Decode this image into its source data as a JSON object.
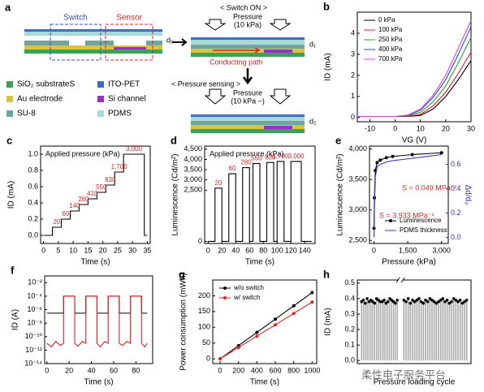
{
  "diagram": {
    "label": "a",
    "switch": "Switch",
    "sensor": "Sensor",
    "d0": "d₀",
    "switch_on": "< Switch ON >",
    "pressure_on_1": "Pressure",
    "pressure_on_2": "(10 kPa)",
    "d1": "d₁",
    "conducting": "Conducting path",
    "sensing": "< Pressure sensing >",
    "pressure_s_1": "Pressure",
    "pressure_s_2": "(10 kPa ~)",
    "d2": "d₂",
    "legend": [
      {
        "name": "SiO₂ substrateS",
        "color": "#3aa35a"
      },
      {
        "name": "ITO-PET",
        "color": "#3a6fc4"
      },
      {
        "name": "Au electrode",
        "color": "#d9c43c"
      },
      {
        "name": "Si channel",
        "color": "#9b30c8"
      },
      {
        "name": "SU-8",
        "color": "#6fa6a0"
      },
      {
        "name": "PDMS",
        "color": "#a8d8d8"
      }
    ]
  },
  "watermark": "柔性电子服务平台",
  "chart_data": [
    {
      "label": "b",
      "type": "line",
      "x_label": "VG (V)",
      "y_label": "ID (mA)",
      "x": [
        -15,
        -10,
        -5,
        0,
        5,
        10,
        15,
        20,
        25,
        30
      ],
      "xlim": [
        -15,
        30
      ],
      "xticks": [
        -10,
        0,
        10,
        20,
        30
      ],
      "ylim": [
        -0.2,
        5
      ],
      "yticks": [
        0,
        1,
        2,
        3,
        4
      ],
      "legend": "upper left",
      "series": [
        {
          "name": "0 kPa",
          "color": "#000000",
          "values": [
            0.05,
            0.05,
            0.05,
            0.05,
            0.05,
            0.1,
            0.4,
            1.0,
            1.8,
            2.7
          ]
        },
        {
          "name": "100 kPa",
          "color": "#e02020",
          "values": [
            0.05,
            0.05,
            0.05,
            0.05,
            0.06,
            0.15,
            0.55,
            1.2,
            2.1,
            3.1
          ]
        },
        {
          "name": "250 kPa",
          "color": "#2ca02c",
          "values": [
            0.05,
            0.05,
            0.05,
            0.05,
            0.08,
            0.25,
            0.75,
            1.5,
            2.6,
            3.8
          ]
        },
        {
          "name": "400 kPa",
          "color": "#1f4fd0",
          "values": [
            0.05,
            0.05,
            0.05,
            0.05,
            0.1,
            0.35,
            0.95,
            1.8,
            3.0,
            4.3
          ]
        },
        {
          "name": "700 kPa",
          "color": "#e040e0",
          "values": [
            0.05,
            0.05,
            0.05,
            0.05,
            0.12,
            0.4,
            1.05,
            2.0,
            3.3,
            4.6
          ]
        }
      ]
    },
    {
      "label": "c",
      "type": "line",
      "x_label": "Time (s)",
      "y_label": "ID (mA)",
      "annotation": "Applied pressure (kPa)",
      "xlim": [
        -1,
        36
      ],
      "xticks": [
        0,
        5,
        10,
        15,
        20,
        25,
        30,
        35
      ],
      "ylim": [
        -0.1,
        1.1
      ],
      "yticks": [
        {
          "value": 0,
          "label": "0.0"
        },
        0.2,
        0.4,
        0.6,
        0.8,
        {
          "value": 1,
          "label": "1.0"
        }
      ],
      "x": [
        0,
        3,
        3,
        6,
        6,
        9,
        9,
        12,
        12,
        15,
        15,
        18,
        18,
        21,
        21,
        24,
        24,
        27,
        27,
        34,
        34,
        35
      ],
      "values": [
        0,
        0,
        0.1,
        0.1,
        0.2,
        0.2,
        0.3,
        0.3,
        0.38,
        0.38,
        0.45,
        0.45,
        0.53,
        0.53,
        0.62,
        0.62,
        0.78,
        0.78,
        1.0,
        1.0,
        0,
        0
      ],
      "color": "#000000",
      "step_labels": [
        "20",
        "60",
        "140",
        "280",
        "410",
        "550",
        "830",
        "1,700",
        "3,000"
      ],
      "step_label_color": "#d62728"
    },
    {
      "label": "d",
      "type": "line",
      "x_label": "Time (s)",
      "y_label": "Luminescence (Cd/m²)",
      "annotation": "Applied pressure (kPa)",
      "xlim": [
        -5,
        155
      ],
      "xticks": [
        0,
        20,
        40,
        60,
        80,
        100,
        120,
        140
      ],
      "ylim": [
        -100,
        4650
      ],
      "yticks": [
        0,
        {
          "value": 2500,
          "label": "2,500"
        },
        {
          "value": 3000,
          "label": "3,000"
        },
        {
          "value": 3500,
          "label": "3,500"
        },
        {
          "value": 4000,
          "label": "4,000"
        },
        {
          "value": 4500,
          "label": "4,500"
        }
      ],
      "x": [
        0,
        10,
        10,
        20,
        20,
        30,
        30,
        40,
        40,
        50,
        50,
        60,
        60,
        65,
        65,
        75,
        75,
        85,
        85,
        95,
        95,
        100,
        100,
        110,
        110,
        120,
        120,
        135,
        135,
        150
      ],
      "values": [
        0,
        0,
        2600,
        2600,
        0,
        0,
        3300,
        3300,
        0,
        0,
        3600,
        3600,
        0,
        0,
        3800,
        3800,
        0,
        0,
        3850,
        3850,
        0,
        0,
        3900,
        3900,
        0,
        0,
        3900,
        3900,
        0,
        0
      ],
      "color": "#000000",
      "step_labels": [
        "20",
        "60",
        "280",
        "550",
        "830",
        "1,700",
        "3,000"
      ],
      "step_label_color": "#d62728"
    },
    {
      "label": "e",
      "type": "line",
      "x_label": "Pressure (kPa)",
      "y_label": "Luminescence (Cd/m²)",
      "y2_label": "Δd/d₀",
      "xlim": [
        -200,
        3300
      ],
      "xticks": [
        0,
        {
          "value": 1500,
          "label": "1,500"
        },
        {
          "value": 3000,
          "label": "3,000"
        }
      ],
      "ylim": [
        2450,
        4050
      ],
      "yticks": [
        {
          "value": 2500,
          "label": "2,500"
        },
        {
          "value": 3000,
          "label": "3,000"
        },
        {
          "value": 3500,
          "label": "3,500"
        },
        {
          "value": 4000,
          "label": "4,000"
        }
      ],
      "y2lim": [
        -0.05,
        0.75
      ],
      "y2ticks": [
        {
          "value": 0,
          "label": "0.0"
        },
        0.2,
        0.4,
        0.6
      ],
      "legend": "lower right",
      "x": [
        0,
        20,
        60,
        140,
        280,
        550,
        830,
        1700,
        3000
      ],
      "series": [
        {
          "name": "Luminescence",
          "color": "#000000",
          "markers": true,
          "values": [
            2700,
            3200,
            3650,
            3780,
            3820,
            3860,
            3880,
            3910,
            3940
          ]
        },
        {
          "name": "PDMS thickness",
          "color": "#3030c0",
          "axis": "y2",
          "values": [
            0,
            0.25,
            0.5,
            0.58,
            0.6,
            0.62,
            0.63,
            0.65,
            0.68
          ]
        }
      ],
      "annotations": [
        "S = 0.049 MPa⁻¹",
        "S = 3.933 MPa⁻¹"
      ],
      "annotation_color": "#d62728"
    },
    {
      "label": "f",
      "type": "line",
      "x_label": "Time (s)",
      "y_label": "ID (A)",
      "log": true,
      "xlim": [
        -2,
        95
      ],
      "xticks": [
        0,
        20,
        40,
        60,
        80
      ],
      "ylim": [
        1e-14,
        0.1
      ],
      "yticks": [
        {
          "value": 1e-14,
          "label": "10⁻¹⁴"
        },
        {
          "value": 1e-12,
          "label": "10⁻¹²"
        },
        {
          "value": 1e-10,
          "label": "10⁻¹⁰"
        },
        {
          "value": 1e-08,
          "label": "10⁻⁸"
        },
        {
          "value": 1e-06,
          "label": "10⁻⁶"
        },
        {
          "value": 0.0001,
          "label": "10⁻⁴"
        },
        {
          "value": 0.01,
          "label": "10⁻²"
        }
      ],
      "series": [
        {
          "color": "#000000",
          "x": [
            0,
            15,
            15,
            25,
            25,
            35,
            35,
            45,
            45,
            55,
            55,
            65,
            65,
            75,
            75,
            85,
            85,
            90
          ],
          "values": [
            3e-07,
            3e-07,
            0.0001,
            0.0001,
            3e-07,
            3e-07,
            0.0001,
            0.0001,
            3e-07,
            3e-07,
            0.0001,
            0.0001,
            3e-07,
            3e-07,
            0.0001,
            0.0001,
            3e-07,
            3e-07
          ]
        },
        {
          "color": "#e02020",
          "x": [
            0,
            4,
            8,
            12,
            15,
            15,
            25,
            25,
            28,
            32,
            35,
            35,
            45,
            45,
            48,
            52,
            55,
            55,
            65,
            65,
            68,
            72,
            75,
            75,
            85,
            85,
            88,
            90
          ],
          "values": [
            1e-11,
            3e-12,
            2e-11,
            5e-12,
            1e-11,
            0.0001,
            0.0001,
            1e-11,
            4e-12,
            2e-11,
            1e-11,
            0.0001,
            0.0001,
            1e-11,
            3e-12,
            2e-11,
            1e-11,
            0.0001,
            0.0001,
            1e-11,
            5e-12,
            2e-11,
            1e-11,
            0.0001,
            0.0001,
            1e-11,
            3e-12,
            1e-11
          ]
        }
      ]
    },
    {
      "label": "g",
      "type": "line",
      "x_label": "Time (s)",
      "y_label": "Power consumption (mWh)",
      "xlim": [
        -80,
        1050
      ],
      "xticks": [
        0,
        200,
        400,
        600,
        800,
        1000
      ],
      "ylim": [
        -15,
        250
      ],
      "yticks": [
        0,
        50,
        100,
        150,
        200
      ],
      "legend": "upper left",
      "x": [
        0,
        200,
        400,
        600,
        800,
        1000
      ],
      "series": [
        {
          "name": "w/o switch",
          "color": "#000000",
          "markers": true,
          "values": [
            0,
            42,
            84,
            126,
            168,
            210
          ]
        },
        {
          "name": "w/ switch",
          "color": "#e02020",
          "markers": true,
          "values": [
            0,
            36,
            72,
            108,
            144,
            180
          ]
        }
      ]
    },
    {
      "label": "h",
      "type": "bar",
      "x_label": "Pressure loading cycle",
      "y_label": "ID (mA)",
      "ylim": [
        -0.02,
        0.52
      ],
      "yticks": [
        {
          "value": 0,
          "label": "0.0"
        },
        0.1,
        0.2,
        0.3,
        0.4,
        0.5
      ],
      "color": "#aaaaaa",
      "segments": [
        {
          "values": [
            0.38,
            0.39,
            0.37,
            0.4,
            0.38,
            0.39,
            0.38,
            0.37,
            0.4,
            0.39,
            0.38,
            0.38,
            0.39,
            0.37,
            0.38,
            0.4,
            0.39,
            0.38,
            0.37,
            0.39
          ]
        },
        {
          "values": [
            0.39,
            0.38,
            0.4,
            0.37,
            0.39,
            0.38,
            0.39,
            0.4,
            0.38,
            0.37,
            0.39,
            0.38,
            0.4,
            0.39,
            0.38,
            0.37,
            0.38,
            0.39,
            0.4,
            0.38,
            0.39,
            0.37,
            0.38,
            0.4,
            0.39,
            0.38,
            0.39,
            0.37,
            0.38,
            0.39
          ]
        }
      ]
    }
  ]
}
